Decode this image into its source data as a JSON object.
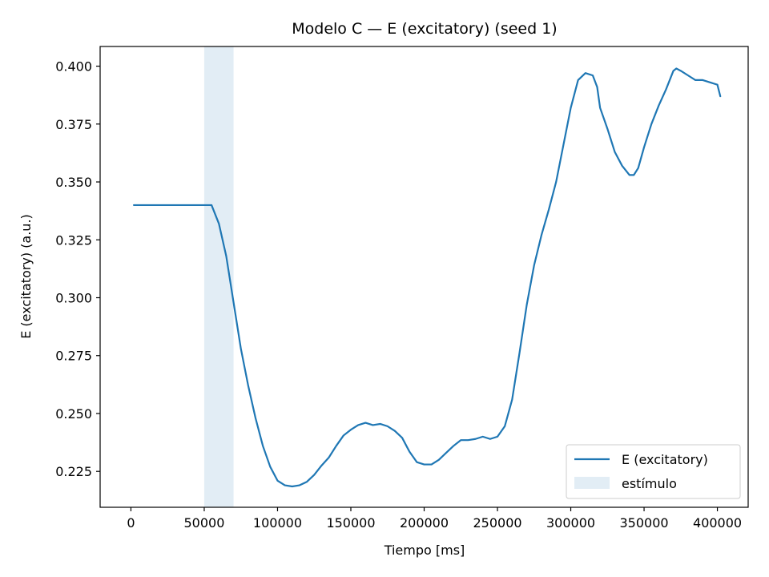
{
  "chart_data": {
    "type": "line",
    "title": "Modelo C — E (excitatory) (seed 1)",
    "xlabel": "Tiempo [ms]",
    "ylabel": "E (excitatory) (a.u.)",
    "xlim": [
      -21000,
      421000
    ],
    "ylim": [
      0.2095,
      0.4085
    ],
    "xticks": [
      0,
      50000,
      100000,
      150000,
      200000,
      250000,
      300000,
      350000,
      400000
    ],
    "xtick_labels": [
      "0",
      "50000",
      "100000",
      "150000",
      "200000",
      "250000",
      "300000",
      "350000",
      "400000"
    ],
    "yticks": [
      0.225,
      0.25,
      0.275,
      0.3,
      0.325,
      0.35,
      0.375,
      0.4
    ],
    "ytick_labels": [
      "0.225",
      "0.250",
      "0.275",
      "0.300",
      "0.325",
      "0.350",
      "0.375",
      "0.400"
    ],
    "grid": false,
    "legend_position": "bottom-right",
    "stimulus": {
      "name": "estímulo",
      "x_start": 50000,
      "x_end": 70000,
      "color": "#c6dbec"
    },
    "series": [
      {
        "name": "E (excitatory)",
        "color": "#1f77b4",
        "x": [
          2000,
          20000,
          40000,
          52000,
          55000,
          60000,
          65000,
          70000,
          75000,
          80000,
          85000,
          90000,
          95000,
          100000,
          105000,
          110000,
          115000,
          120000,
          125000,
          130000,
          135000,
          140000,
          145000,
          150000,
          155000,
          160000,
          165000,
          170000,
          175000,
          180000,
          185000,
          190000,
          195000,
          200000,
          205000,
          210000,
          215000,
          220000,
          225000,
          230000,
          235000,
          240000,
          245000,
          250000,
          255000,
          260000,
          265000,
          270000,
          275000,
          280000,
          285000,
          290000,
          295000,
          300000,
          305000,
          310000,
          315000,
          318000,
          320000,
          325000,
          330000,
          335000,
          340000,
          343000,
          346000,
          350000,
          355000,
          360000,
          365000,
          370000,
          372000,
          375000,
          380000,
          385000,
          390000,
          395000,
          400000,
          402000
        ],
        "values": [
          0.34,
          0.34,
          0.34,
          0.34,
          0.34,
          0.332,
          0.318,
          0.298,
          0.278,
          0.262,
          0.248,
          0.236,
          0.227,
          0.221,
          0.219,
          0.2185,
          0.219,
          0.2205,
          0.2235,
          0.2275,
          0.231,
          0.236,
          0.2405,
          0.243,
          0.245,
          0.246,
          0.245,
          0.2455,
          0.2445,
          0.2425,
          0.2395,
          0.2335,
          0.229,
          0.228,
          0.228,
          0.23,
          0.233,
          0.236,
          0.2385,
          0.2385,
          0.239,
          0.24,
          0.239,
          0.24,
          0.2445,
          0.256,
          0.276,
          0.297,
          0.314,
          0.327,
          0.338,
          0.35,
          0.366,
          0.382,
          0.394,
          0.397,
          0.396,
          0.391,
          0.382,
          0.373,
          0.363,
          0.357,
          0.353,
          0.353,
          0.356,
          0.365,
          0.375,
          0.383,
          0.39,
          0.398,
          0.399,
          0.398,
          0.396,
          0.394,
          0.394,
          0.393,
          0.392,
          0.387
        ]
      }
    ]
  }
}
